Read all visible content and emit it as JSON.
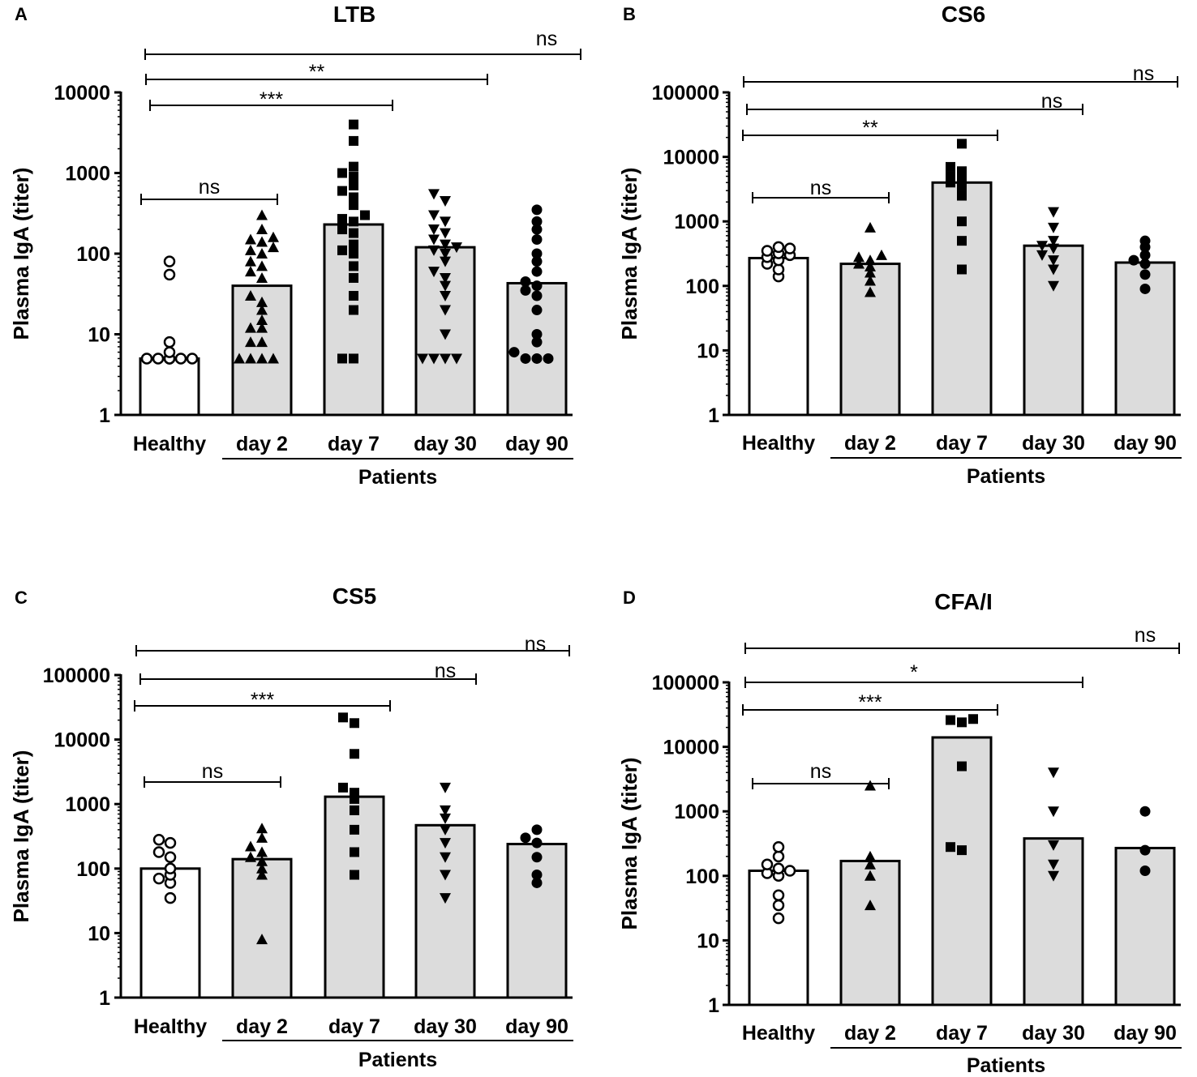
{
  "figure": {
    "group_label": "Patients"
  },
  "chart_data": [
    {
      "type": "bar",
      "panel": "A",
      "title": "LTB",
      "ylabel": "Plasma IgA (titer)",
      "xlabel": "",
      "yscale": "log",
      "ylim": [
        1,
        10000
      ],
      "y_ticks": [
        "1",
        "10",
        "100",
        "1000",
        "10000"
      ],
      "categories": [
        "Healthy",
        "day 2",
        "day 7",
        "day 30",
        "day 90"
      ],
      "group_label": "Patients",
      "values": [
        5,
        40,
        230,
        120,
        43
      ],
      "bar_fill": [
        "#ffffff",
        "#dcdcdc",
        "#dcdcdc",
        "#dcdcdc",
        "#dcdcdc"
      ],
      "marker": [
        "circle-open",
        "triangle-up",
        "square",
        "triangle-down",
        "circle-filled"
      ],
      "points": [
        [
          5,
          5,
          5,
          5,
          5,
          5,
          5,
          6,
          8,
          55,
          80
        ],
        [
          5,
          5,
          5,
          5,
          8,
          8,
          12,
          12,
          15,
          20,
          25,
          30,
          50,
          60,
          70,
          80,
          100,
          110,
          120,
          140,
          150,
          160,
          200,
          300
        ],
        [
          5,
          5,
          20,
          30,
          50,
          70,
          100,
          110,
          130,
          180,
          200,
          250,
          270,
          300,
          400,
          500,
          600,
          700,
          900,
          1000,
          1200,
          2500,
          4000
        ],
        [
          5,
          5,
          5,
          5,
          10,
          20,
          30,
          40,
          50,
          60,
          80,
          100,
          110,
          120,
          130,
          150,
          180,
          200,
          250,
          300,
          450,
          550
        ],
        [
          5,
          5,
          5,
          6,
          8,
          10,
          20,
          30,
          35,
          40,
          45,
          60,
          80,
          100,
          150,
          200,
          250,
          350
        ]
      ],
      "comparisons": [
        {
          "from": 0,
          "to": 1,
          "label": "ns"
        },
        {
          "from": 0,
          "to": 2,
          "label": "***"
        },
        {
          "from": 0,
          "to": 3,
          "label": "**"
        },
        {
          "from": 0,
          "to": 4,
          "label": "ns"
        }
      ]
    },
    {
      "type": "bar",
      "panel": "B",
      "title": "CS6",
      "ylabel": "Plasma IgA (titer)",
      "xlabel": "",
      "yscale": "log",
      "ylim": [
        1,
        100000
      ],
      "y_ticks": [
        "1",
        "10",
        "100",
        "1000",
        "10000",
        "100000"
      ],
      "categories": [
        "Healthy",
        "day 2",
        "day 7",
        "day 30",
        "day 90"
      ],
      "group_label": "Patients",
      "values": [
        270,
        220,
        4000,
        420,
        230
      ],
      "bar_fill": [
        "#ffffff",
        "#dcdcdc",
        "#dcdcdc",
        "#dcdcdc",
        "#dcdcdc"
      ],
      "marker": [
        "circle-open",
        "triangle-up",
        "square",
        "triangle-down",
        "circle-filled"
      ],
      "points": [
        [
          140,
          180,
          220,
          250,
          280,
          300,
          320,
          350,
          380,
          400
        ],
        [
          80,
          120,
          160,
          200,
          220,
          250,
          280,
          300,
          800
        ],
        [
          180,
          500,
          1000,
          2500,
          3500,
          4000,
          4500,
          5000,
          6000,
          7000,
          16000
        ],
        [
          100,
          180,
          250,
          300,
          380,
          420,
          500,
          800,
          1400
        ],
        [
          90,
          150,
          220,
          250,
          300,
          400,
          500
        ]
      ],
      "comparisons": [
        {
          "from": 0,
          "to": 1,
          "label": "ns"
        },
        {
          "from": 0,
          "to": 2,
          "label": "**"
        },
        {
          "from": 0,
          "to": 3,
          "label": "ns"
        },
        {
          "from": 0,
          "to": 4,
          "label": "ns"
        }
      ]
    },
    {
      "type": "bar",
      "panel": "C",
      "title": "CS5",
      "ylabel": "Plasma IgA (titer)",
      "xlabel": "",
      "yscale": "log",
      "ylim": [
        1,
        100000
      ],
      "y_ticks": [
        "1",
        "10",
        "100",
        "1000",
        "10000",
        "100000"
      ],
      "categories": [
        "Healthy",
        "day 2",
        "day 7",
        "day 30",
        "day 90"
      ],
      "group_label": "Patients",
      "values": [
        100,
        140,
        1300,
        470,
        240
      ],
      "bar_fill": [
        "#ffffff",
        "#dcdcdc",
        "#dcdcdc",
        "#dcdcdc",
        "#dcdcdc"
      ],
      "marker": [
        "circle-open",
        "triangle-up",
        "square",
        "triangle-down",
        "circle-filled"
      ],
      "points": [
        [
          35,
          60,
          70,
          80,
          100,
          150,
          180,
          250,
          280
        ],
        [
          8,
          80,
          100,
          130,
          150,
          180,
          220,
          300,
          420
        ],
        [
          80,
          180,
          400,
          800,
          1200,
          1500,
          1800,
          6000,
          18000,
          22000
        ],
        [
          35,
          80,
          150,
          250,
          400,
          600,
          800,
          1800
        ],
        [
          60,
          80,
          150,
          250,
          300,
          400
        ]
      ],
      "comparisons": [
        {
          "from": 0,
          "to": 1,
          "label": "ns"
        },
        {
          "from": 0,
          "to": 2,
          "label": "***"
        },
        {
          "from": 0,
          "to": 3,
          "label": "ns"
        },
        {
          "from": 0,
          "to": 4,
          "label": "ns"
        }
      ]
    },
    {
      "type": "bar",
      "panel": "D",
      "title": "CFA/I",
      "ylabel": "Plasma IgA (titer)",
      "xlabel": "",
      "yscale": "log",
      "ylim": [
        1,
        100000
      ],
      "y_ticks": [
        "1",
        "10",
        "100",
        "1000",
        "10000",
        "100000"
      ],
      "categories": [
        "Healthy",
        "day 2",
        "day 7",
        "day 30",
        "day 90"
      ],
      "group_label": "Patients",
      "values": [
        120,
        170,
        14000,
        380,
        270
      ],
      "bar_fill": [
        "#ffffff",
        "#dcdcdc",
        "#dcdcdc",
        "#dcdcdc",
        "#dcdcdc"
      ],
      "marker": [
        "circle-open",
        "triangle-up",
        "square",
        "triangle-down",
        "circle-filled"
      ],
      "points": [
        [
          22,
          35,
          50,
          100,
          110,
          120,
          130,
          150,
          200,
          280
        ],
        [
          35,
          100,
          150,
          200,
          2500
        ],
        [
          250,
          280,
          5000,
          24000,
          26000,
          27000
        ],
        [
          100,
          150,
          300,
          1000,
          4000
        ],
        [
          120,
          250,
          1000
        ]
      ],
      "comparisons": [
        {
          "from": 0,
          "to": 1,
          "label": "ns"
        },
        {
          "from": 0,
          "to": 2,
          "label": "***"
        },
        {
          "from": 0,
          "to": 3,
          "label": "*"
        },
        {
          "from": 0,
          "to": 4,
          "label": "ns"
        }
      ]
    }
  ]
}
